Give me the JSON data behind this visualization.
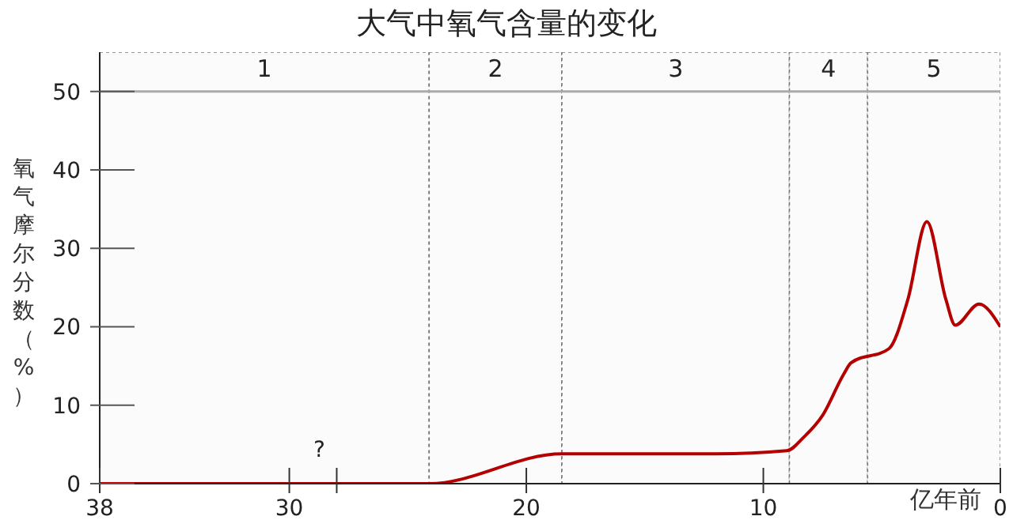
{
  "chart_data": {
    "type": "line",
    "title": "大气中氧气含量的变化",
    "xlabel": "亿年前",
    "ylabel": "氧气摩尔分数（%）",
    "x": [
      38,
      24.1,
      18.5,
      12,
      9,
      8.3,
      7.5,
      6.6,
      6.3,
      4.7,
      3.9,
      3.1,
      2.3,
      1.9,
      0.9,
      0
    ],
    "series": [
      {
        "color": "#b40000",
        "values": [
          0,
          0,
          3.8,
          3.8,
          4.2,
          5.9,
          8.7,
          14,
          15.4,
          17.2,
          23.5,
          33.4,
          23.5,
          20.2,
          22.9,
          20
        ]
      }
    ],
    "xlim": [
      38,
      0
    ],
    "xticks": [
      38,
      30,
      {
        "value": 28,
        "label": null
      },
      20,
      10,
      0
    ],
    "ylim": [
      0,
      55
    ],
    "yticks": [
      0,
      10,
      20,
      30,
      40,
      50
    ],
    "bands": [
      {
        "axis": "x",
        "from": 38,
        "to": 24.1,
        "label": "1",
        "color": "#fbfbfb"
      },
      {
        "axis": "x",
        "from": 24.1,
        "to": 18.5,
        "label": "2",
        "color": "#fbfbfb"
      },
      {
        "axis": "x",
        "from": 18.5,
        "to": 8.9,
        "label": "3",
        "color": "#fbfbfb"
      },
      {
        "axis": "x",
        "from": 8.9,
        "to": 5.6,
        "label": "4",
        "color": "#fbfbfb"
      },
      {
        "axis": "x",
        "from": 5.6,
        "to": 0,
        "label": "5",
        "color": "#fbfbfb"
      }
    ],
    "ref_lines": [
      {
        "axis": "y",
        "value": 50,
        "color": "#aaaaaa"
      }
    ],
    "annotations": [
      "?"
    ],
    "marker": "none",
    "line_style": "solid"
  }
}
